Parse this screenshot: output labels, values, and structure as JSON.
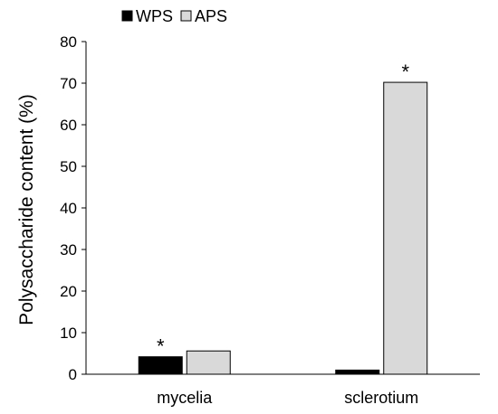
{
  "chart_data": {
    "type": "bar",
    "title": "",
    "xlabel": "",
    "ylabel": "Polysaccharide content (%)",
    "ylim": [
      0,
      80
    ],
    "yticks": [
      "0",
      "10",
      "20",
      "30",
      "40",
      "50",
      "60",
      "70",
      "80"
    ],
    "categories": [
      "mycelia",
      "sclerotium"
    ],
    "series": [
      {
        "name": "WPS",
        "color": "#000000",
        "values": [
          4.2,
          1.0
        ],
        "annotations": [
          "*",
          ""
        ]
      },
      {
        "name": "APS",
        "color": "#d9d9d9",
        "values": [
          5.6,
          70.2
        ],
        "annotations": [
          "",
          "*"
        ]
      }
    ],
    "legend_position": "top-left",
    "grid": false
  }
}
